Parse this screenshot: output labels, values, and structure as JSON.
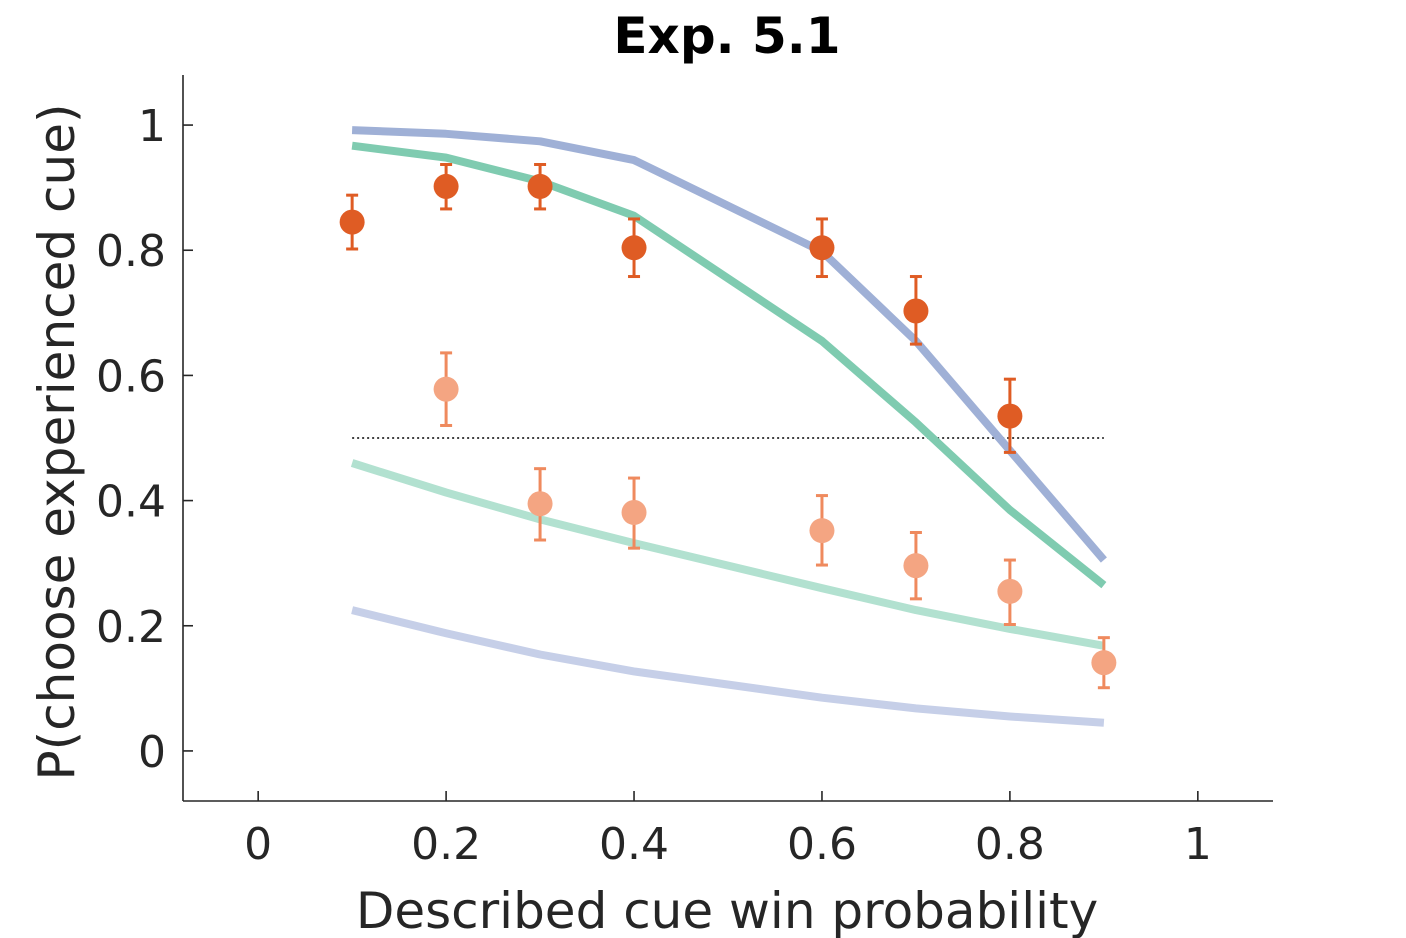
{
  "chart_data": {
    "type": "line",
    "title": "Exp. 5.1",
    "xlabel": "Described cue win probability",
    "ylabel": "P(choose experienced cue)",
    "xlim": [
      -0.08,
      1.08
    ],
    "ylim": [
      -0.08,
      1.08
    ],
    "xticks": [
      0,
      0.2,
      0.4,
      0.6,
      0.8,
      1
    ],
    "xtick_labels": [
      "0",
      "0.2",
      "0.4",
      "0.6",
      "0.8",
      "1"
    ],
    "yticks": [
      0,
      0.2,
      0.4,
      0.6,
      0.8,
      1
    ],
    "ytick_labels": [
      "0",
      "0.2",
      "0.4",
      "0.6",
      "0.8",
      "1"
    ],
    "grid": false,
    "reference_line": {
      "y": 0.5,
      "x_range": [
        0.1,
        0.9
      ],
      "style": "dotted",
      "color": "#000000"
    },
    "lines": [
      {
        "color": "#9fb0d6",
        "x": [
          0.1,
          0.2,
          0.3,
          0.4,
          0.6,
          0.7,
          0.8,
          0.9
        ],
        "y": [
          0.992,
          0.986,
          0.974,
          0.944,
          0.798,
          0.655,
          0.48,
          0.305
        ]
      },
      {
        "color": "#7fcbb0",
        "x": [
          0.1,
          0.2,
          0.3,
          0.4,
          0.6,
          0.7,
          0.8,
          0.9
        ],
        "y": [
          0.967,
          0.948,
          0.91,
          0.855,
          0.655,
          0.525,
          0.385,
          0.265
        ]
      },
      {
        "color": "#b2e1d0",
        "x": [
          0.1,
          0.2,
          0.3,
          0.4,
          0.6,
          0.7,
          0.8,
          0.9
        ],
        "y": [
          0.46,
          0.413,
          0.37,
          0.332,
          0.26,
          0.225,
          0.195,
          0.168
        ]
      },
      {
        "color": "#c6cfe8",
        "x": [
          0.1,
          0.2,
          0.3,
          0.4,
          0.6,
          0.7,
          0.8,
          0.9
        ],
        "y": [
          0.225,
          0.188,
          0.154,
          0.127,
          0.085,
          0.068,
          0.055,
          0.045
        ]
      }
    ],
    "points": [
      {
        "color": "#df5c24",
        "x": [
          0.1,
          0.2,
          0.3,
          0.4,
          0.6,
          0.7,
          0.8
        ],
        "y": [
          0.845,
          0.902,
          0.902,
          0.804,
          0.804,
          0.703,
          0.535
        ],
        "err_low": [
          0.802,
          0.866,
          0.866,
          0.758,
          0.758,
          0.65,
          0.477
        ],
        "err_high": [
          0.888,
          0.937,
          0.937,
          0.85,
          0.85,
          0.758,
          0.594
        ]
      },
      {
        "color": "#f4a582",
        "err_color": "#ef8a5e",
        "x": [
          0.2,
          0.3,
          0.4,
          0.6,
          0.7,
          0.8,
          0.9
        ],
        "y": [
          0.578,
          0.395,
          0.381,
          0.352,
          0.296,
          0.255,
          0.141
        ],
        "err_low": [
          0.52,
          0.337,
          0.324,
          0.297,
          0.243,
          0.202,
          0.101
        ],
        "err_high": [
          0.636,
          0.451,
          0.436,
          0.408,
          0.349,
          0.305,
          0.181
        ]
      }
    ]
  }
}
